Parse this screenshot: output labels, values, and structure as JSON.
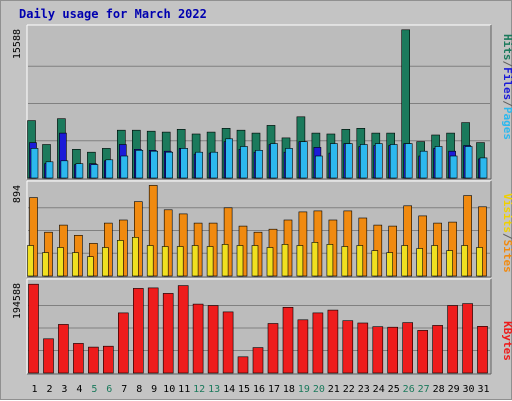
{
  "title": "Daily usage for March 2022",
  "colors": {
    "hits": "#1b7a5c",
    "files": "#1b1bd8",
    "pages": "#2cb8ee",
    "visits": "#f08a10",
    "sites": "#f0e020",
    "kbytes": "#ee1c1c",
    "label_hits": "#1b7a5c",
    "label_files": "#1b1bd8",
    "label_pages": "#2cb8ee",
    "label_visits": "#f0d000",
    "label_sites": "#f08a10",
    "label_kbytes": "#ee1c1c",
    "weekend_day": "#1b7a5c",
    "weekday": "#000000",
    "sep": "#606060"
  },
  "right_labels": {
    "top": [
      {
        "text": "Hits",
        "key": "label_hits"
      },
      {
        "text": "/",
        "key": "sep"
      },
      {
        "text": "Files",
        "key": "label_files"
      },
      {
        "text": "/",
        "key": "sep"
      },
      {
        "text": "Pages",
        "key": "label_pages"
      }
    ],
    "middle": [
      {
        "text": "Visits",
        "key": "label_visits"
      },
      {
        "text": "/",
        "key": "sep"
      },
      {
        "text": "Sites",
        "key": "label_sites"
      }
    ],
    "bottom": [
      {
        "text": "KBytes",
        "key": "label_kbytes"
      }
    ]
  },
  "chart_data": [
    {
      "type": "bar",
      "ylim": [
        0,
        15588
      ],
      "max_label": "15588",
      "grid": true,
      "x": [
        1,
        2,
        3,
        4,
        5,
        6,
        7,
        8,
        9,
        10,
        11,
        12,
        13,
        14,
        15,
        16,
        17,
        18,
        19,
        20,
        21,
        22,
        23,
        24,
        25,
        26,
        27,
        28,
        29,
        30,
        31
      ],
      "weekend": [
        5,
        6,
        12,
        13,
        19,
        20,
        26,
        27
      ],
      "series": [
        {
          "name": "Hits",
          "key": "hits",
          "values": [
            6000,
            3500,
            6200,
            3000,
            2700,
            3100,
            5000,
            5000,
            4900,
            4800,
            5100,
            4600,
            4800,
            5200,
            5000,
            4700,
            5500,
            4200,
            6400,
            4700,
            4600,
            5100,
            5200,
            4700,
            4700,
            15500,
            3800,
            4500,
            4700,
            5800,
            3700
          ]
        },
        {
          "name": "Files",
          "key": "files",
          "values": [
            3700,
            1500,
            4700,
            1400,
            1500,
            1800,
            3500,
            3000,
            2900,
            2800,
            3100,
            2500,
            2600,
            3800,
            3000,
            2700,
            3500,
            2700,
            3800,
            3200,
            2600,
            3600,
            3300,
            3400,
            3400,
            3600,
            2300,
            3100,
            2800,
            3400,
            2000
          ]
        },
        {
          "name": "Pages",
          "key": "pages",
          "values": [
            3100,
            1700,
            1800,
            1500,
            1400,
            1900,
            2300,
            2900,
            2800,
            2700,
            3100,
            2700,
            2700,
            4100,
            3300,
            2900,
            3600,
            3100,
            3800,
            2300,
            3600,
            3600,
            3500,
            3600,
            3500,
            3600,
            2800,
            3300,
            2300,
            3300,
            2100
          ]
        }
      ]
    },
    {
      "type": "bar",
      "ylim": [
        0,
        894
      ],
      "max_label": "894",
      "grid": true,
      "x": [
        1,
        2,
        3,
        4,
        5,
        6,
        7,
        8,
        9,
        10,
        11,
        12,
        13,
        14,
        15,
        16,
        17,
        18,
        19,
        20,
        21,
        22,
        23,
        24,
        25,
        26,
        27,
        28,
        29,
        30,
        31
      ],
      "series": [
        {
          "name": "Visits",
          "key": "visits",
          "values": [
            770,
            430,
            500,
            400,
            320,
            520,
            550,
            730,
            890,
            650,
            610,
            520,
            520,
            670,
            490,
            430,
            460,
            550,
            630,
            640,
            550,
            640,
            570,
            500,
            490,
            690,
            590,
            520,
            530,
            790,
            680
          ]
        },
        {
          "name": "Sites",
          "key": "sites",
          "values": [
            300,
            230,
            280,
            230,
            190,
            280,
            350,
            380,
            300,
            290,
            290,
            300,
            290,
            310,
            300,
            300,
            280,
            310,
            300,
            330,
            310,
            290,
            300,
            250,
            230,
            300,
            270,
            300,
            250,
            300,
            280
          ]
        }
      ]
    },
    {
      "type": "bar",
      "ylim": [
        0,
        194588
      ],
      "max_label": "194588",
      "grid": true,
      "x": [
        1,
        2,
        3,
        4,
        5,
        6,
        7,
        8,
        9,
        10,
        11,
        12,
        13,
        14,
        15,
        16,
        17,
        18,
        19,
        20,
        21,
        22,
        23,
        24,
        25,
        26,
        27,
        28,
        29,
        30,
        31
      ],
      "series": [
        {
          "name": "KBytes",
          "key": "kbytes",
          "values": [
            192000,
            74000,
            105000,
            64000,
            56000,
            58000,
            130000,
            183000,
            184000,
            172000,
            189000,
            149000,
            146000,
            132000,
            35000,
            55000,
            107000,
            142000,
            115000,
            130000,
            136000,
            113000,
            108000,
            100000,
            99000,
            109000,
            92000,
            103000,
            146000,
            150000,
            101000
          ]
        }
      ]
    }
  ]
}
